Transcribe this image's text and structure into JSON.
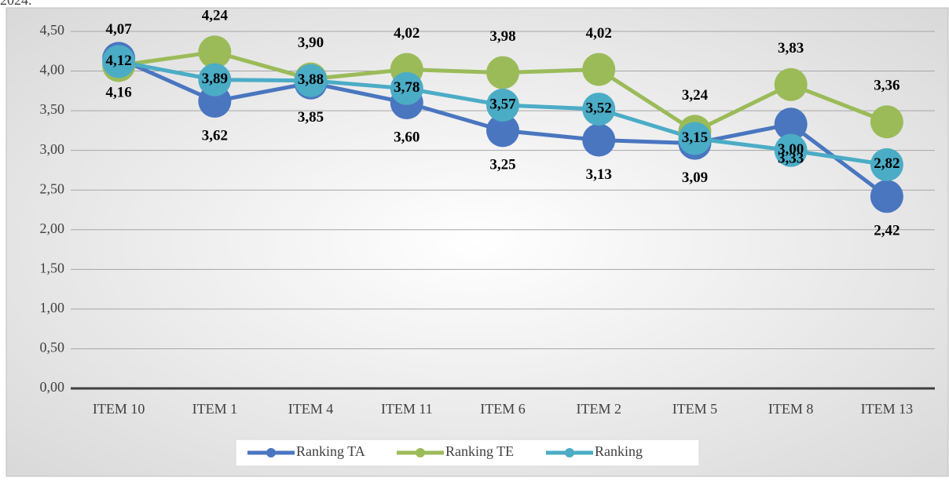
{
  "caption": "2024.",
  "chart_data": {
    "type": "line",
    "categories": [
      "ITEM 10",
      "ITEM 1",
      "ITEM 4",
      "ITEM 11",
      "ITEM 6",
      "ITEM 2",
      "ITEM 5",
      "ITEM 8",
      "ITEM 13"
    ],
    "series": [
      {
        "name": "Ranking TA",
        "color": "#4a76c0",
        "label_pos": "below",
        "values": [
          4.16,
          3.62,
          3.85,
          3.6,
          3.25,
          3.13,
          3.09,
          3.33,
          2.42
        ],
        "value_labels": [
          "4,16",
          "3,62",
          "3,85",
          "3,60",
          "3,25",
          "3,13",
          "3,09",
          "3,33",
          "2,42"
        ]
      },
      {
        "name": "Ranking TE",
        "color": "#9bbb59",
        "label_pos": "above",
        "values": [
          4.07,
          4.24,
          3.9,
          4.02,
          3.98,
          4.02,
          3.24,
          3.83,
          3.36
        ],
        "value_labels": [
          "4,07",
          "4,24",
          "3,90",
          "4,02",
          "3,98",
          "4,02",
          "3,24",
          "3,83",
          "3,36"
        ]
      },
      {
        "name": "Ranking",
        "color": "#4bacc6",
        "label_pos": "center",
        "values": [
          4.12,
          3.89,
          3.88,
          3.78,
          3.57,
          3.52,
          3.15,
          3.0,
          2.82
        ],
        "value_labels": [
          "4,12",
          "3,89",
          "3,88",
          "3,78",
          "3,57",
          "3,52",
          "3,15",
          "3,00",
          "2,82"
        ]
      }
    ],
    "ylim": [
      0,
      4.5
    ],
    "yticks": [
      {
        "value": 0,
        "label": "0,00"
      },
      {
        "value": 0.5,
        "label": "0,50"
      },
      {
        "value": 1,
        "label": "1,00"
      },
      {
        "value": 1.5,
        "label": "1,50"
      },
      {
        "value": 2,
        "label": "2,00"
      },
      {
        "value": 2.5,
        "label": "2,50"
      },
      {
        "value": 3,
        "label": "3,00"
      },
      {
        "value": 3.5,
        "label": "3,50"
      },
      {
        "value": 4,
        "label": "4,00"
      },
      {
        "value": 4.5,
        "label": "4,50"
      }
    ],
    "grid": true,
    "legend": "bottom"
  }
}
